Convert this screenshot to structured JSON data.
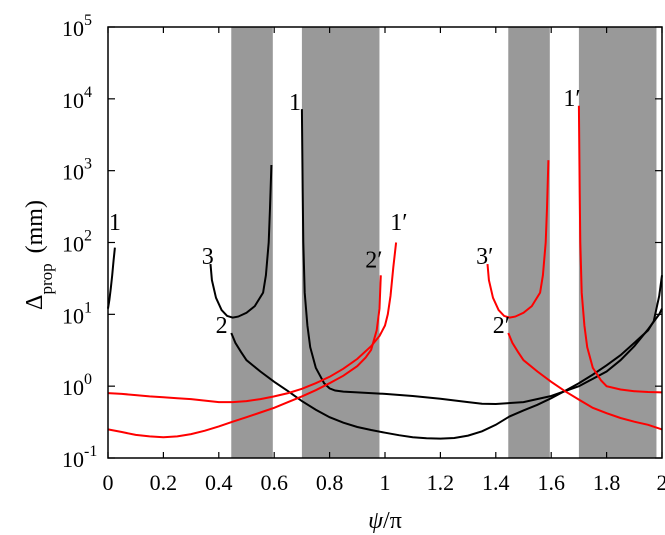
{
  "chart_data": {
    "type": "line",
    "xlabel_var": "ψ",
    "xlabel_rest": "/π",
    "ylabel_main": "Δ",
    "ylabel_sub": "prop",
    "ylabel_unit": "(mm)",
    "xlim": [
      0,
      2
    ],
    "ylim": [
      0.1,
      100000
    ],
    "yscale": "log",
    "grid": false,
    "x_ticks": [
      {
        "value": 0,
        "label": "0"
      },
      {
        "value": 0.2,
        "label": "0.2"
      },
      {
        "value": 0.4,
        "label": "0.4"
      },
      {
        "value": 0.6,
        "label": "0.6"
      },
      {
        "value": 0.8,
        "label": "0.8"
      },
      {
        "value": 1.0,
        "label": "1"
      },
      {
        "value": 1.2,
        "label": "1.2"
      },
      {
        "value": 1.4,
        "label": "1.4"
      },
      {
        "value": 1.6,
        "label": "1.6"
      },
      {
        "value": 1.8,
        "label": "1.8"
      },
      {
        "value": 2.0,
        "label": "2"
      }
    ],
    "y_ticks": [
      {
        "value": 0.1,
        "base": "10",
        "exp": "-1"
      },
      {
        "value": 1,
        "base": "10",
        "exp": "0"
      },
      {
        "value": 10,
        "base": "10",
        "exp": "1"
      },
      {
        "value": 100,
        "base": "10",
        "exp": "2"
      },
      {
        "value": 1000,
        "base": "10",
        "exp": "3"
      },
      {
        "value": 10000,
        "base": "10",
        "exp": "4"
      },
      {
        "value": 100000,
        "base": "10",
        "exp": "5"
      }
    ],
    "shaded_bands": [
      [
        0.445,
        0.595
      ],
      [
        0.7,
        0.98
      ],
      [
        1.445,
        1.595
      ],
      [
        1.7,
        1.98
      ]
    ],
    "series": [
      {
        "color": "#000000",
        "points": [
          [
            0.0,
            12
          ],
          [
            0.005,
            16
          ],
          [
            0.01,
            23
          ],
          [
            0.015,
            35
          ],
          [
            0.02,
            55
          ],
          [
            0.025,
            85
          ]
        ]
      },
      {
        "color": "#000000",
        "points": [
          [
            0.37,
            50
          ],
          [
            0.375,
            30
          ],
          [
            0.39,
            17
          ],
          [
            0.41,
            11.5
          ],
          [
            0.43,
            9.5
          ],
          [
            0.45,
            9
          ],
          [
            0.47,
            9.3
          ],
          [
            0.5,
            10.5
          ],
          [
            0.53,
            13
          ],
          [
            0.56,
            20
          ],
          [
            0.57,
            35
          ],
          [
            0.58,
            100
          ],
          [
            0.585,
            300
          ],
          [
            0.59,
            1200
          ]
        ]
      },
      {
        "color": "#000000",
        "points": [
          [
            0.7,
            7200
          ],
          [
            0.703,
            500
          ],
          [
            0.705,
            100
          ],
          [
            0.71,
            20
          ],
          [
            0.72,
            7
          ],
          [
            0.73,
            3.5
          ],
          [
            0.75,
            1.8
          ],
          [
            0.78,
            1.1
          ],
          [
            0.8,
            0.93
          ],
          [
            0.82,
            0.87
          ],
          [
            0.85,
            0.84
          ],
          [
            0.9,
            0.82
          ],
          [
            1.0,
            0.78
          ],
          [
            1.1,
            0.73
          ],
          [
            1.2,
            0.67
          ],
          [
            1.3,
            0.6
          ],
          [
            1.35,
            0.57
          ],
          [
            1.4,
            0.565
          ],
          [
            1.5,
            0.6
          ],
          [
            1.6,
            0.73
          ],
          [
            1.7,
            1.0
          ],
          [
            1.8,
            1.6
          ],
          [
            1.85,
            2.3
          ],
          [
            1.9,
            3.6
          ],
          [
            1.95,
            6.2
          ],
          [
            1.99,
            10
          ],
          [
            2.0,
            12
          ]
        ]
      },
      {
        "color": "#000000",
        "points": [
          [
            0.445,
            5.5
          ],
          [
            0.46,
            4.0
          ],
          [
            0.48,
            3.0
          ],
          [
            0.5,
            2.3
          ],
          [
            0.55,
            1.6
          ],
          [
            0.6,
            1.15
          ],
          [
            0.65,
            0.85
          ],
          [
            0.7,
            0.62
          ],
          [
            0.75,
            0.47
          ],
          [
            0.8,
            0.37
          ],
          [
            0.85,
            0.31
          ],
          [
            0.9,
            0.27
          ],
          [
            0.95,
            0.245
          ],
          [
            1.0,
            0.225
          ],
          [
            1.05,
            0.208
          ],
          [
            1.1,
            0.195
          ],
          [
            1.15,
            0.188
          ],
          [
            1.2,
            0.186
          ],
          [
            1.25,
            0.19
          ],
          [
            1.3,
            0.205
          ],
          [
            1.35,
            0.235
          ],
          [
            1.4,
            0.29
          ],
          [
            1.45,
            0.38
          ],
          [
            1.5,
            0.46
          ],
          [
            1.55,
            0.55
          ],
          [
            1.6,
            0.68
          ],
          [
            1.65,
            0.86
          ],
          [
            1.7,
            1.1
          ],
          [
            1.75,
            1.45
          ],
          [
            1.8,
            1.95
          ],
          [
            1.85,
            2.7
          ],
          [
            1.9,
            4.0
          ],
          [
            1.95,
            6.0
          ],
          [
            1.97,
            8.0
          ],
          [
            1.99,
            18
          ],
          [
            2.0,
            35
          ]
        ]
      },
      {
        "color": "#ff0000",
        "points": [
          [
            0.0,
            0.8
          ],
          [
            0.05,
            0.78
          ],
          [
            0.1,
            0.75
          ],
          [
            0.15,
            0.72
          ],
          [
            0.2,
            0.7
          ],
          [
            0.25,
            0.68
          ],
          [
            0.3,
            0.66
          ],
          [
            0.35,
            0.63
          ],
          [
            0.4,
            0.6
          ],
          [
            0.45,
            0.6
          ],
          [
            0.5,
            0.62
          ],
          [
            0.55,
            0.66
          ],
          [
            0.6,
            0.72
          ],
          [
            0.65,
            0.8
          ],
          [
            0.7,
            0.92
          ],
          [
            0.75,
            1.1
          ],
          [
            0.8,
            1.35
          ],
          [
            0.85,
            1.75
          ],
          [
            0.9,
            2.4
          ],
          [
            0.95,
            3.6
          ],
          [
            0.98,
            5
          ],
          [
            1.0,
            7
          ],
          [
            1.01,
            10
          ],
          [
            1.02,
            18
          ],
          [
            1.03,
            45
          ],
          [
            1.04,
            100
          ]
        ]
      },
      {
        "color": "#ff0000",
        "points": [
          [
            0.0,
            0.25
          ],
          [
            0.05,
            0.23
          ],
          [
            0.1,
            0.21
          ],
          [
            0.15,
            0.2
          ],
          [
            0.2,
            0.195
          ],
          [
            0.25,
            0.2
          ],
          [
            0.3,
            0.215
          ],
          [
            0.35,
            0.24
          ],
          [
            0.4,
            0.275
          ],
          [
            0.45,
            0.32
          ],
          [
            0.5,
            0.37
          ],
          [
            0.55,
            0.43
          ],
          [
            0.6,
            0.5
          ],
          [
            0.65,
            0.6
          ],
          [
            0.7,
            0.72
          ],
          [
            0.75,
            0.88
          ],
          [
            0.8,
            1.1
          ],
          [
            0.85,
            1.4
          ],
          [
            0.9,
            1.9
          ],
          [
            0.93,
            2.5
          ],
          [
            0.95,
            3.2
          ],
          [
            0.97,
            6
          ],
          [
            0.98,
            12
          ],
          [
            0.985,
            35
          ]
        ]
      },
      {
        "color": "#ff0000",
        "points": [
          [
            1.37,
            50
          ],
          [
            1.375,
            30
          ],
          [
            1.39,
            17
          ],
          [
            1.41,
            11.5
          ],
          [
            1.43,
            9.5
          ],
          [
            1.45,
            9
          ],
          [
            1.47,
            9.3
          ],
          [
            1.5,
            10.5
          ],
          [
            1.53,
            13
          ],
          [
            1.56,
            20
          ],
          [
            1.57,
            35
          ],
          [
            1.58,
            100
          ],
          [
            1.585,
            300
          ],
          [
            1.59,
            1400
          ]
        ]
      },
      {
        "color": "#ff0000",
        "points": [
          [
            1.7,
            8000
          ],
          [
            1.703,
            500
          ],
          [
            1.705,
            100
          ],
          [
            1.71,
            20
          ],
          [
            1.72,
            7
          ],
          [
            1.73,
            3.5
          ],
          [
            1.75,
            1.8
          ],
          [
            1.78,
            1.2
          ],
          [
            1.8,
            1.0
          ],
          [
            1.85,
            0.9
          ],
          [
            1.9,
            0.85
          ],
          [
            1.95,
            0.83
          ],
          [
            2.0,
            0.82
          ]
        ]
      },
      {
        "color": "#ff0000",
        "points": [
          [
            1.445,
            5.5
          ],
          [
            1.46,
            4.0
          ],
          [
            1.48,
            3.0
          ],
          [
            1.5,
            2.3
          ],
          [
            1.55,
            1.6
          ],
          [
            1.6,
            1.15
          ],
          [
            1.65,
            0.85
          ],
          [
            1.7,
            0.65
          ],
          [
            1.75,
            0.5
          ],
          [
            1.8,
            0.42
          ],
          [
            1.85,
            0.36
          ],
          [
            1.9,
            0.32
          ],
          [
            1.95,
            0.29
          ],
          [
            2.0,
            0.25
          ]
        ]
      }
    ],
    "curve_labels": [
      {
        "text": "1",
        "x": 0.025,
        "y": 150,
        "color": "#000000"
      },
      {
        "text": "3",
        "x": 0.36,
        "y": 50,
        "color": "#000000"
      },
      {
        "text": "2",
        "x": 0.41,
        "y": 5.5,
        "color": "#000000"
      },
      {
        "text": "1",
        "x": 0.675,
        "y": 7000,
        "color": "#000000"
      },
      {
        "text": "1′",
        "x": 1.05,
        "y": 150,
        "color": "#000000"
      },
      {
        "text": "2′",
        "x": 0.96,
        "y": 45,
        "color": "#000000"
      },
      {
        "text": "3′",
        "x": 1.36,
        "y": 50,
        "color": "#000000"
      },
      {
        "text": "2′",
        "x": 1.42,
        "y": 5.5,
        "color": "#000000"
      },
      {
        "text": "1′",
        "x": 1.675,
        "y": 8000,
        "color": "#000000"
      }
    ]
  }
}
